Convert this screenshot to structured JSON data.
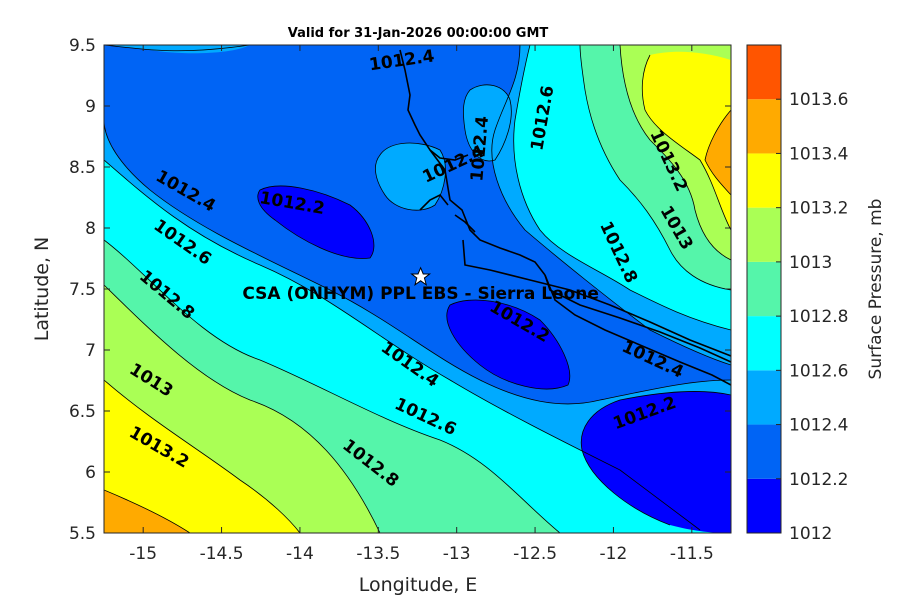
{
  "chart_data": {
    "type": "contour-map",
    "title": "Valid for 31-Jan-2026 00:00:00 GMT",
    "xlabel": "Longitude, E",
    "ylabel": "Latitude, N",
    "xlim": [
      -15.25,
      -11.25
    ],
    "ylim": [
      5.5,
      9.5
    ],
    "xticks": [
      -15,
      -14.5,
      -14,
      -13.5,
      -13,
      -12.5,
      -12,
      -11.5
    ],
    "yticks": [
      5.5,
      6,
      6.5,
      7,
      7.5,
      8,
      8.5,
      9,
      9.5
    ],
    "xtick_labels": [
      "-15",
      "-14.5",
      "-14",
      "-13.5",
      "-13",
      "-12.5",
      "-12",
      "-11.5"
    ],
    "ytick_labels": [
      "5.5",
      "6",
      "6.5",
      "7",
      "7.5",
      "8",
      "8.5",
      "9",
      "9.5"
    ],
    "colorbar": {
      "label": "Surface Pressure, mb",
      "levels": [
        1012,
        1012.2,
        1012.4,
        1012.6,
        1012.8,
        1013,
        1013.2,
        1013.4,
        1013.6
      ],
      "level_labels": [
        "1012",
        "1012.2",
        "1012.4",
        "1012.6",
        "1012.8",
        "1013",
        "1013.2",
        "1013.4",
        "1013.6"
      ],
      "colors": [
        "#0000ff",
        "#0064f5",
        "#00aaff",
        "#00ffff",
        "#55f5aa",
        "#aaff55",
        "#ffff00",
        "#ffaa00",
        "#ff5500"
      ]
    },
    "contour_labels": [
      {
        "text": "1012.4",
        "lon": -13.35,
        "lat": 9.37,
        "angle": -8
      },
      {
        "text": "1012.4",
        "lon": -14.73,
        "lat": 8.3,
        "angle": 30
      },
      {
        "text": "1012.2",
        "lon": -14.05,
        "lat": 8.2,
        "angle": 10
      },
      {
        "text": "1012.4",
        "lon": -13.02,
        "lat": 8.52,
        "angle": -25
      },
      {
        "text": "1012.4",
        "lon": -12.85,
        "lat": 8.65,
        "angle": -85
      },
      {
        "text": "1012.6",
        "lon": -12.45,
        "lat": 8.9,
        "angle": -80
      },
      {
        "text": "1013.2",
        "lon": -11.65,
        "lat": 8.55,
        "angle": 65
      },
      {
        "text": "1013",
        "lon": -11.6,
        "lat": 8.0,
        "angle": 60
      },
      {
        "text": "1012.6",
        "lon": -14.75,
        "lat": 7.88,
        "angle": 35
      },
      {
        "text": "1012.8",
        "lon": -11.97,
        "lat": 7.8,
        "angle": 65
      },
      {
        "text": "1012.8",
        "lon": -14.85,
        "lat": 7.45,
        "angle": 40
      },
      {
        "text": "1012.2",
        "lon": -12.6,
        "lat": 7.23,
        "angle": 30
      },
      {
        "text": "1012.4",
        "lon": -11.75,
        "lat": 6.92,
        "angle": 25
      },
      {
        "text": "1012.4",
        "lon": -13.3,
        "lat": 6.88,
        "angle": 35
      },
      {
        "text": "1013",
        "lon": -14.95,
        "lat": 6.75,
        "angle": 32
      },
      {
        "text": "1012.2",
        "lon": -11.8,
        "lat": 6.48,
        "angle": -20
      },
      {
        "text": "1012.6",
        "lon": -13.2,
        "lat": 6.45,
        "angle": 25
      },
      {
        "text": "1013.2",
        "lon": -14.9,
        "lat": 6.2,
        "angle": 30
      },
      {
        "text": "1012.8",
        "lon": -13.55,
        "lat": 6.07,
        "angle": 38
      }
    ],
    "site": {
      "label": "CSA (ONHYM) PPL EBS - Sierra Leone",
      "lon": -13.23,
      "lat": 7.6
    }
  }
}
